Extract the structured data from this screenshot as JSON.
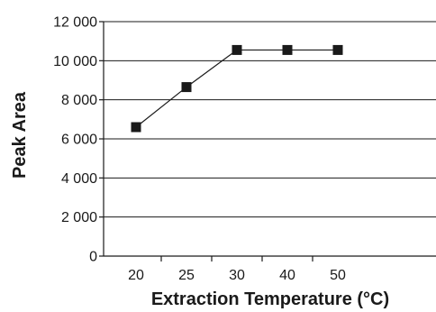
{
  "chart_data": {
    "type": "line",
    "categories": [
      "20",
      "25",
      "30",
      "40",
      "50"
    ],
    "series": [
      {
        "values": [
          6600,
          8650,
          10550,
          10550,
          10550
        ]
      }
    ],
    "xlabel": "Extraction Temperature (°C)",
    "ylabel": "Peak Area",
    "ylim": [
      0,
      12000
    ],
    "yticks": [
      0,
      2000,
      4000,
      6000,
      8000,
      10000,
      12000
    ],
    "ytick_labels": [
      "0",
      "2 000",
      "4 000",
      "6 000",
      "8 000",
      "10 000",
      "12 000"
    ],
    "grid": true,
    "marker": "square",
    "color": "#1a1a1a"
  }
}
